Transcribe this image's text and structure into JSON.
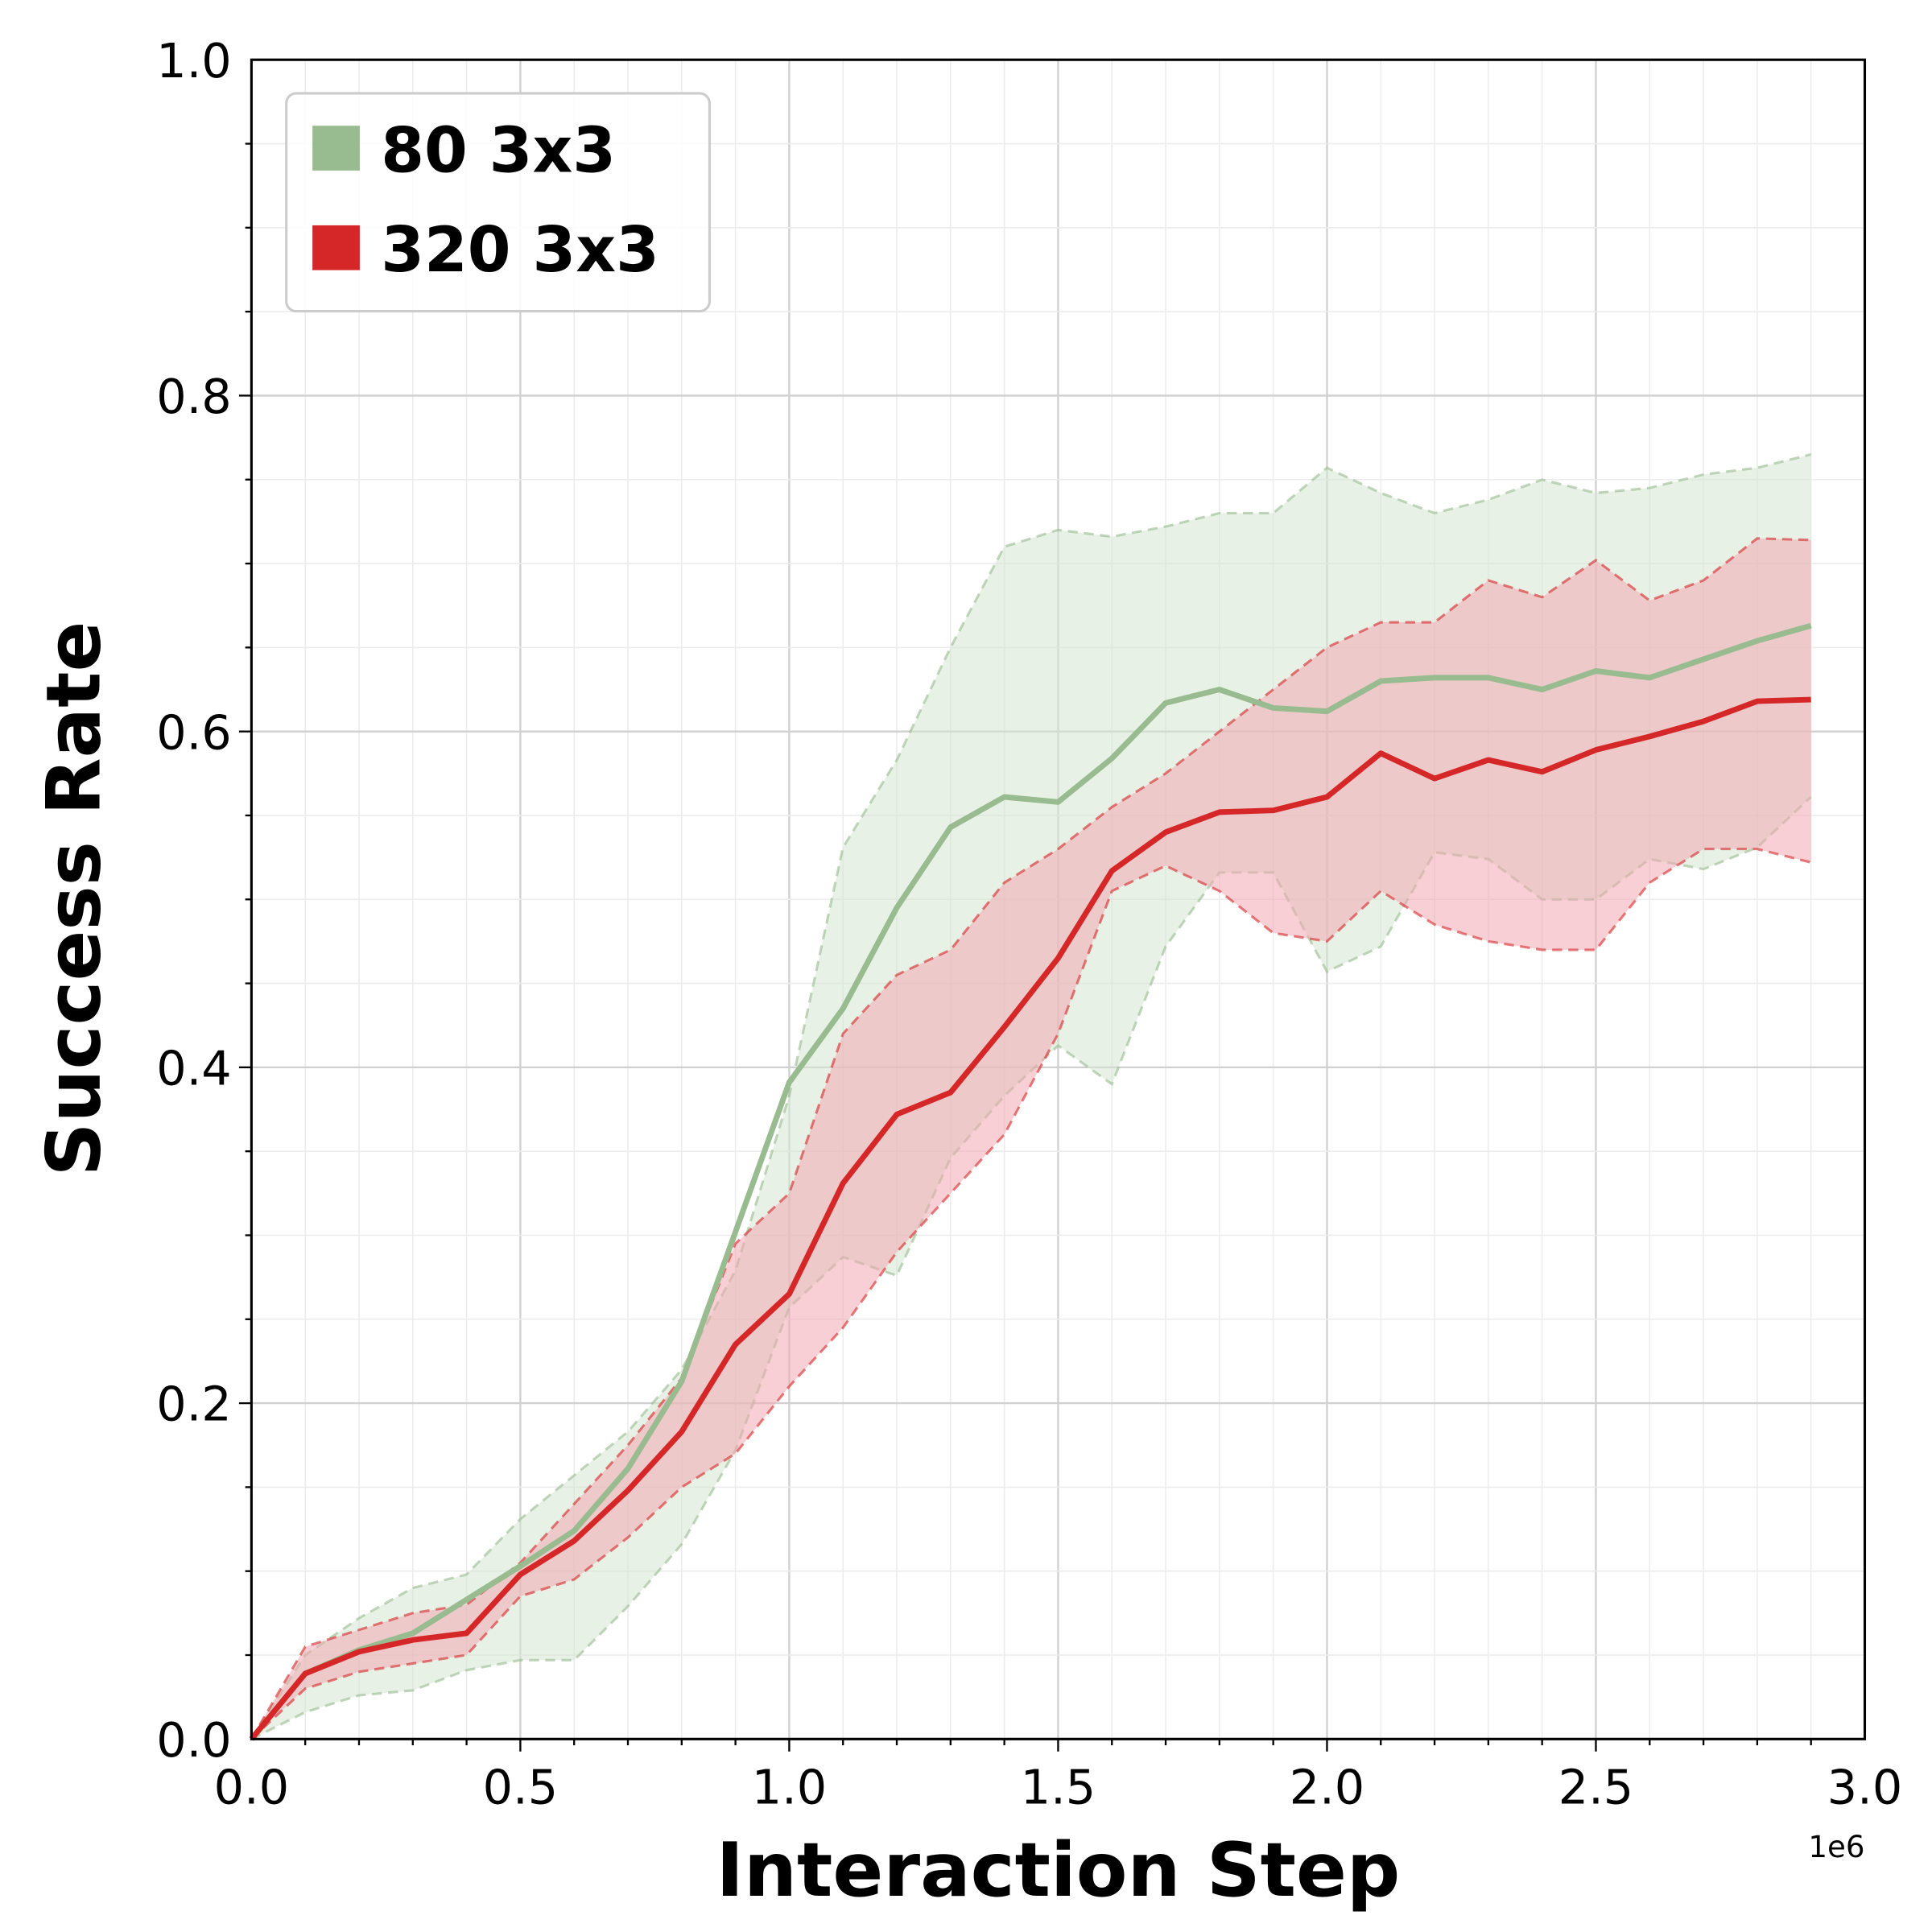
{
  "chart_data": {
    "type": "line",
    "title": "",
    "xlabel": "Interaction Step",
    "ylabel": "Success Rate",
    "x_offset_label": "1e6",
    "xlim": [
      0,
      3.0
    ],
    "ylim": [
      0,
      1.0
    ],
    "xticks": [
      "0.0",
      "0.5",
      "1.0",
      "1.5",
      "2.0",
      "2.5",
      "3.0"
    ],
    "yticks": [
      "0.0",
      "0.2",
      "0.4",
      "0.6",
      "0.8",
      "1.0"
    ],
    "grid": true,
    "legend_position": "top-left",
    "x": [
      0,
      0.1,
      0.2,
      0.3,
      0.4,
      0.5,
      0.6,
      0.7,
      0.8,
      0.9,
      1.0,
      1.1,
      1.2,
      1.3,
      1.4,
      1.5,
      1.6,
      1.7,
      1.8,
      1.9,
      2.0,
      2.1,
      2.2,
      2.3,
      2.4,
      2.5,
      2.6,
      2.7,
      2.8,
      2.9
    ],
    "series": [
      {
        "name": "80 3x3",
        "color": "#98bb8f",
        "fill": "#d6e5d2",
        "values": [
          0,
          0.039,
          0.053,
          0.063,
          0.083,
          0.103,
          0.124,
          0.161,
          0.213,
          0.302,
          0.391,
          0.435,
          0.495,
          0.543,
          0.561,
          0.558,
          0.584,
          0.617,
          0.625,
          0.614,
          0.612,
          0.63,
          0.632,
          0.632,
          0.625,
          0.636,
          0.632,
          0.643,
          0.654,
          0.663
        ],
        "upper": [
          0,
          0.05,
          0.072,
          0.09,
          0.098,
          0.131,
          0.157,
          0.183,
          0.22,
          0.279,
          0.383,
          0.531,
          0.583,
          0.65,
          0.71,
          0.72,
          0.716,
          0.722,
          0.73,
          0.73,
          0.757,
          0.742,
          0.73,
          0.738,
          0.75,
          0.742,
          0.745,
          0.753,
          0.757,
          0.765
        ],
        "lower": [
          0,
          0.016,
          0.026,
          0.029,
          0.041,
          0.047,
          0.047,
          0.079,
          0.116,
          0.172,
          0.257,
          0.287,
          0.276,
          0.346,
          0.383,
          0.413,
          0.39,
          0.472,
          0.516,
          0.516,
          0.457,
          0.472,
          0.528,
          0.524,
          0.5,
          0.5,
          0.524,
          0.518,
          0.531,
          0.561
        ]
      },
      {
        "name": "320 3x3",
        "color": "#d62728",
        "fill": "#f0a8b0",
        "values": [
          0,
          0.039,
          0.052,
          0.059,
          0.063,
          0.098,
          0.118,
          0.148,
          0.183,
          0.235,
          0.265,
          0.331,
          0.372,
          0.385,
          0.424,
          0.465,
          0.517,
          0.54,
          0.552,
          0.553,
          0.561,
          0.587,
          0.572,
          0.583,
          0.576,
          0.589,
          0.597,
          0.606,
          0.618,
          0.619
        ],
        "upper": [
          0,
          0.055,
          0.065,
          0.075,
          0.08,
          0.105,
          0.14,
          0.175,
          0.215,
          0.295,
          0.325,
          0.42,
          0.455,
          0.47,
          0.51,
          0.53,
          0.555,
          0.575,
          0.6,
          0.625,
          0.65,
          0.665,
          0.665,
          0.69,
          0.68,
          0.702,
          0.678,
          0.69,
          0.715,
          0.714
        ],
        "lower": [
          0,
          0.03,
          0.04,
          0.045,
          0.05,
          0.085,
          0.095,
          0.12,
          0.15,
          0.17,
          0.21,
          0.245,
          0.29,
          0.325,
          0.36,
          0.42,
          0.505,
          0.52,
          0.505,
          0.48,
          0.475,
          0.505,
          0.485,
          0.475,
          0.47,
          0.47,
          0.51,
          0.53,
          0.53,
          0.522
        ]
      }
    ]
  }
}
